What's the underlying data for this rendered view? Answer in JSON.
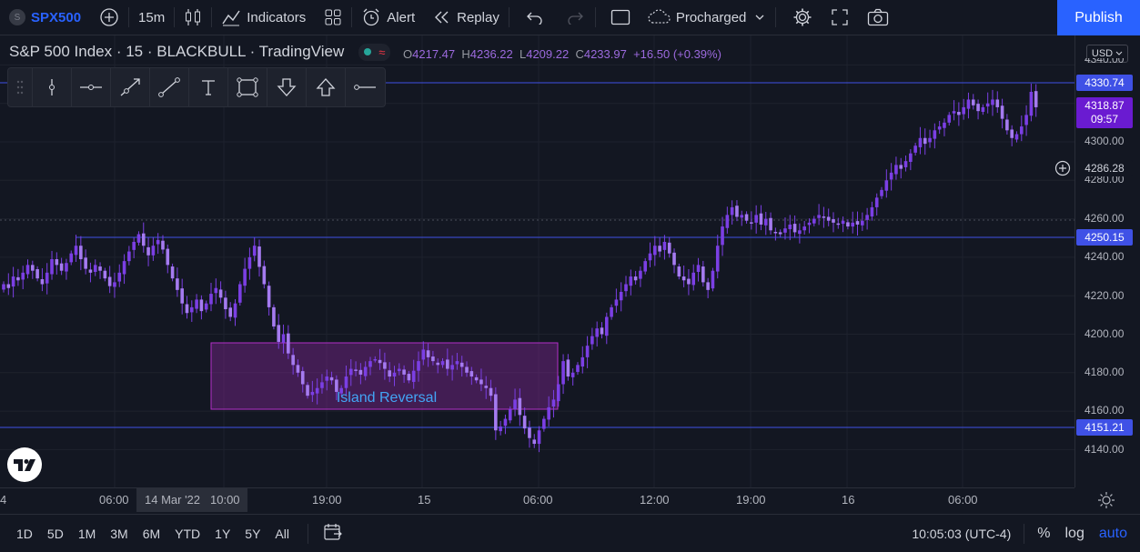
{
  "topbar": {
    "symbol_badge": "S",
    "symbol": "SPX500",
    "interval": "15m",
    "indicators": "Indicators",
    "alert": "Alert",
    "replay": "Replay",
    "layout_name": "Procharged",
    "publish": "Publish"
  },
  "legend": {
    "title": "S&P 500 Index · 15 · BLACKBULL · TradingView",
    "ohlc": [
      {
        "k": "O",
        "v": "4217.47"
      },
      {
        "k": "H",
        "v": "4236.22"
      },
      {
        "k": "L",
        "v": "4209.22"
      },
      {
        "k": "C",
        "v": "4233.97"
      },
      {
        "k": "",
        "v": "+16.50 (+0.39%)"
      }
    ]
  },
  "currency": "USD",
  "annotation_text": "Island Reversal",
  "price_axis": {
    "ticks": [
      "4340.00",
      "4300.00",
      "4280.00",
      "4260.00",
      "4240.00",
      "4220.00",
      "4200.00",
      "4180.00",
      "4160.00",
      "4140.00"
    ],
    "labels": {
      "line1": "4330.74",
      "current_price": "4318.87",
      "countdown": "09:57",
      "crosshair": "4286.28",
      "line2": "4250.15",
      "line3": "4151.21"
    }
  },
  "time_axis": {
    "ticks": [
      "4",
      "06:00",
      "14 Mar '22",
      "10:00",
      "19:00",
      "15",
      "06:00",
      "12:00",
      "19:00",
      "16",
      "06:00"
    ]
  },
  "bottombar": {
    "ranges": [
      "1D",
      "5D",
      "1M",
      "3M",
      "6M",
      "YTD",
      "1Y",
      "5Y",
      "All"
    ],
    "time": "10:05:03 (UTC-4)",
    "percent": "%",
    "log": "log",
    "auto": "auto"
  },
  "colors": {
    "background": "#131722",
    "candle": "#7b3fe4",
    "hline": "#3f51e6",
    "label_blue": "#3f51e6",
    "label_current": "#6a1bd1",
    "box_border": "#b32fc8",
    "box_fill": "rgba(156,39,176,0.35)",
    "annotation_text": "#42a5f5",
    "accent": "#2962ff"
  },
  "chart_data": {
    "type": "candlestick",
    "symbol": "SPX500",
    "interval": "15m",
    "price_range": [
      4130,
      4345
    ],
    "horizontal_lines": [
      4330.74,
      4250.15,
      4151.21
    ],
    "current_price": 4318.87,
    "annotation": {
      "text": "Island Reversal",
      "price_top": 4195,
      "price_bottom": 4161
    },
    "close_path": [
      4226,
      4224,
      4230,
      4228,
      4232,
      4236,
      4233,
      4229,
      4226,
      4232,
      4239,
      4236,
      4233,
      4237,
      4242,
      4246,
      4239,
      4234,
      4232,
      4236,
      4233,
      4229,
      4225,
      4227,
      4232,
      4238,
      4243,
      4248,
      4252,
      4246,
      4241,
      4246,
      4249,
      4244,
      4236,
      4229,
      4223,
      4216,
      4211,
      4214,
      4218,
      4212,
      4216,
      4221,
      4224,
      4219,
      4213,
      4209,
      4216,
      4226,
      4234,
      4240,
      4246,
      4235,
      4226,
      4214,
      4204,
      4196,
      4200,
      4190,
      4184,
      4180,
      4174,
      4168,
      4170,
      4172,
      4175,
      4178,
      4176,
      4170,
      4172,
      4178,
      4182,
      4181,
      4179,
      4183,
      4186,
      4187,
      4185,
      4182,
      4178,
      4180,
      4182,
      4179,
      4176,
      4181,
      4186,
      4192,
      4188,
      4186,
      4184,
      4186,
      4182,
      4184,
      4186,
      4183,
      4180,
      4178,
      4176,
      4174,
      4172,
      4168,
      4150,
      4152,
      4156,
      4161,
      4166,
      4158,
      4151,
      4146,
      4143,
      4150,
      4156,
      4162,
      4166,
      4174,
      4186,
      4178,
      4180,
      4184,
      4188,
      4194,
      4199,
      4203,
      4200,
      4209,
      4214,
      4218,
      4222,
      4226,
      4230,
      4228,
      4233,
      4238,
      4242,
      4246,
      4243,
      4248,
      4242,
      4236,
      4230,
      4228,
      4226,
      4232,
      4236,
      4227,
      4223,
      4233,
      4246,
      4256,
      4262,
      4266,
      4261,
      4262,
      4259,
      4258,
      4262,
      4257,
      4260,
      4254,
      4253,
      4252,
      4255,
      4257,
      4253,
      4254,
      4256,
      4258,
      4260,
      4262,
      4261,
      4259,
      4258,
      4257,
      4259,
      4256,
      4258,
      4257,
      4259,
      4262,
      4266,
      4271,
      4275,
      4280,
      4284,
      4288,
      4286,
      4290,
      4294,
      4298,
      4302,
      4299,
      4302,
      4306,
      4308,
      4310,
      4314,
      4316,
      4314,
      4318,
      4322,
      4319,
      4316,
      4318,
      4320,
      4322,
      4318,
      4312,
      4306,
      4302,
      4304,
      4308,
      4314,
      4326,
      4318
    ]
  }
}
